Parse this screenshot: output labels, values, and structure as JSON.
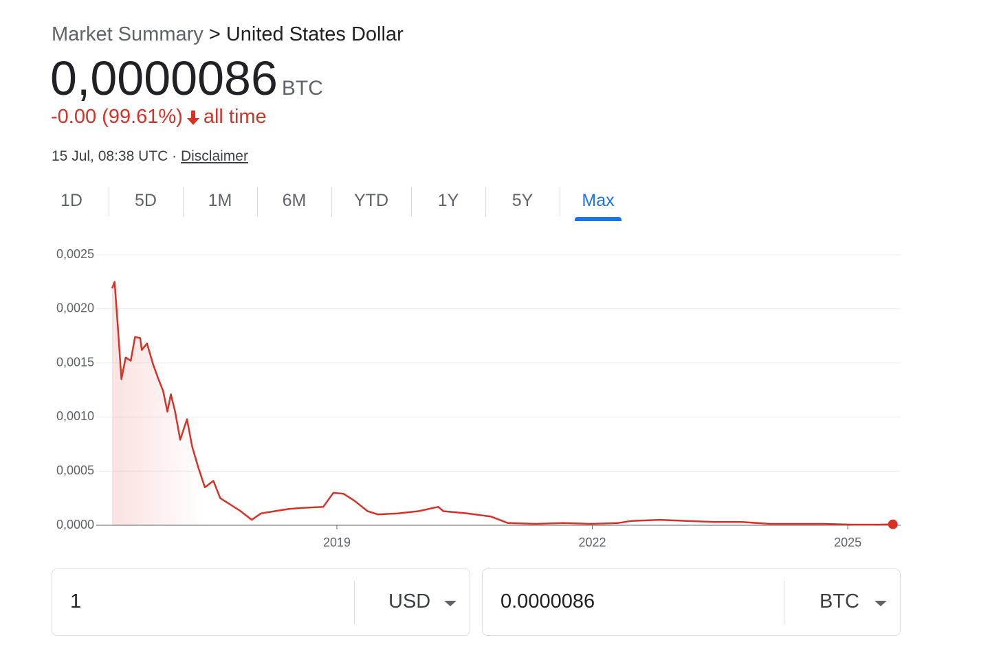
{
  "header": {
    "breadcrumb_parent": "Market Summary",
    "breadcrumb_separator": ">",
    "breadcrumb_current": "United States Dollar"
  },
  "quote": {
    "price": "0,0000086",
    "unit": "BTC",
    "change": "-0.00 (99.61%)",
    "period": "all time",
    "timestamp": "15 Jul, 08:38 UTC",
    "separator": "·",
    "disclaimer": "Disclaimer"
  },
  "tabs": {
    "items": [
      "1D",
      "5D",
      "1M",
      "6M",
      "YTD",
      "1Y",
      "5Y",
      "Max"
    ],
    "selected": 7
  },
  "chart_data": {
    "type": "line",
    "color": "#d93025",
    "grid": true,
    "x": [
      2016.36,
      2016.39,
      2016.43,
      2016.47,
      2016.52,
      2016.58,
      2016.63,
      2016.69,
      2016.71,
      2016.77,
      2016.84,
      2016.9,
      2016.96,
      2017.01,
      2017.05,
      2017.1,
      2017.16,
      2017.24,
      2017.3,
      2017.37,
      2017.45,
      2017.55,
      2017.63,
      2017.75,
      2017.87,
      2018.0,
      2018.11,
      2018.27,
      2018.43,
      2018.59,
      2018.84,
      2018.96,
      2019.08,
      2019.2,
      2019.36,
      2019.48,
      2019.72,
      2019.96,
      2020.19,
      2020.25,
      2020.53,
      2020.81,
      2021.01,
      2021.34,
      2021.66,
      2021.98,
      2022.3,
      2022.46,
      2022.79,
      2023.11,
      2023.43,
      2023.76,
      2024.08,
      2024.4,
      2024.72,
      2025.05,
      2025.37,
      2025.53
    ],
    "values": [
      0.00219,
      0.00225,
      0.00181,
      0.00135,
      0.00155,
      0.00152,
      0.00174,
      0.00173,
      0.00162,
      0.00168,
      0.00149,
      0.00136,
      0.00124,
      0.00105,
      0.00121,
      0.00105,
      0.00079,
      0.00098,
      0.00073,
      0.00054,
      0.00035,
      0.00041,
      0.00025,
      0.00019,
      0.00013,
      5e-05,
      0.00011,
      0.00013,
      0.00015,
      0.00016,
      0.00017,
      0.0003,
      0.00029,
      0.00023,
      0.00013,
      0.0001,
      0.00011,
      0.00013,
      0.00017,
      0.00013,
      0.00011,
      8e-05,
      2e-05,
      1.3e-05,
      2e-05,
      1.3e-05,
      2e-05,
      4e-05,
      5e-05,
      4e-05,
      3e-05,
      3e-05,
      1.3e-05,
      1.3e-05,
      1.3e-05,
      6e-06,
      6e-06,
      8.6e-06
    ],
    "xlim": [
      2016.36,
      2025.54
    ],
    "xticks": [
      2019,
      2022,
      2025
    ],
    "ylim": [
      0,
      0.0025
    ],
    "yticks": [
      {
        "value": 0,
        "label": "0,0000"
      },
      {
        "value": 0.0005,
        "label": "0,0005"
      },
      {
        "value": 0.001,
        "label": "0,0010"
      },
      {
        "value": 0.0015,
        "label": "0,0015"
      },
      {
        "value": 0.002,
        "label": "0,0020"
      },
      {
        "value": 0.0025,
        "label": "0,0025"
      }
    ]
  },
  "converter": {
    "from_amount": "1",
    "from_currency": "USD",
    "to_amount": "0.0000086",
    "to_currency": "BTC"
  }
}
